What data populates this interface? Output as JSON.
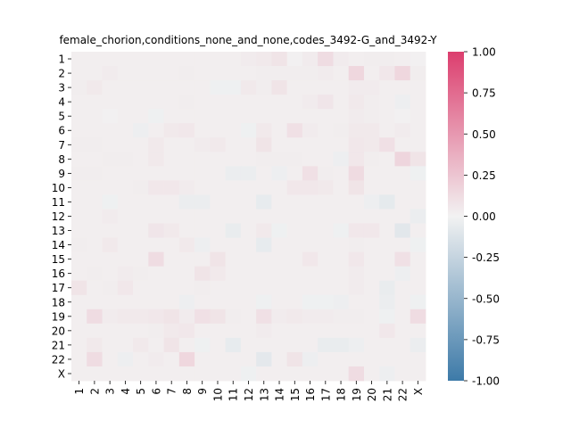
{
  "chart_data": {
    "type": "heatmap",
    "title": "female_chorion,conditions_none_and_none,codes_3492-G_and_3492-Y",
    "xlabel": "",
    "ylabel": "",
    "row_labels": [
      "1",
      "2",
      "3",
      "4",
      "5",
      "6",
      "7",
      "8",
      "9",
      "10",
      "11",
      "12",
      "13",
      "14",
      "15",
      "16",
      "17",
      "18",
      "19",
      "20",
      "21",
      "22",
      "X"
    ],
    "col_labels": [
      "1",
      "2",
      "3",
      "4",
      "5",
      "6",
      "7",
      "8",
      "9",
      "10",
      "11",
      "12",
      "13",
      "14",
      "15",
      "16",
      "17",
      "18",
      "19",
      "20",
      "21",
      "22",
      "X"
    ],
    "colorbar": {
      "min": -1.0,
      "max": 1.0,
      "ticks": [
        "-1.00",
        "-0.75",
        "-0.50",
        "-0.25",
        "0.00",
        "0.25",
        "0.50",
        "0.75",
        "1.00"
      ],
      "tick_values": [
        -1.0,
        -0.75,
        -0.5,
        -0.25,
        0.0,
        0.25,
        0.5,
        0.75,
        1.0
      ],
      "low_color": "#3d7aa8",
      "mid_color": "#f2f2f2",
      "high_color": "#dc3e6e"
    },
    "values": [
      [
        0.02,
        0.02,
        0.02,
        0.02,
        0.02,
        0.02,
        0.02,
        0.02,
        0.02,
        0.02,
        0.02,
        0.04,
        0.05,
        0.08,
        0.01,
        0.04,
        0.12,
        0.04,
        0.02,
        0.03,
        0.03,
        0.02,
        0.01
      ],
      [
        0.02,
        0.02,
        0.04,
        0.02,
        0.02,
        0.02,
        0.02,
        0.03,
        0.02,
        0.02,
        0.02,
        0.02,
        0.03,
        0.03,
        0.03,
        0.03,
        0.04,
        0.02,
        0.15,
        0.02,
        0.06,
        0.15,
        0.03
      ],
      [
        0.03,
        0.05,
        0.02,
        0.02,
        0.02,
        0.02,
        0.02,
        0.02,
        0.02,
        -0.02,
        -0.02,
        0.05,
        0.03,
        0.08,
        0.02,
        0.02,
        0.02,
        0.02,
        0.04,
        0.04,
        0.02,
        0.02,
        0.02
      ],
      [
        0.02,
        0.02,
        0.02,
        0.02,
        0.02,
        0.02,
        0.02,
        0.03,
        0.02,
        0.02,
        0.02,
        0.02,
        0.02,
        0.02,
        0.02,
        0.04,
        0.07,
        0.02,
        0.05,
        0.03,
        0.02,
        -0.03,
        0.02
      ],
      [
        0.02,
        0.02,
        0.01,
        0.02,
        0.02,
        -0.02,
        0.02,
        0.02,
        0.02,
        0.02,
        0.02,
        0.02,
        0.02,
        0.02,
        0.02,
        0.02,
        0.02,
        0.02,
        0.04,
        0.03,
        0.02,
        0.01,
        0.02
      ],
      [
        0.02,
        0.02,
        0.02,
        0.02,
        -0.03,
        0.02,
        0.05,
        0.06,
        0.02,
        0.02,
        0.02,
        -0.02,
        0.05,
        0.02,
        0.1,
        0.04,
        0.02,
        0.03,
        0.05,
        0.05,
        0.02,
        0.04,
        0.02
      ],
      [
        0.03,
        0.03,
        0.02,
        0.02,
        0.02,
        0.05,
        0.02,
        0.02,
        0.04,
        0.05,
        0.02,
        0.02,
        0.08,
        0.02,
        0.02,
        0.02,
        0.02,
        0.02,
        0.06,
        0.05,
        0.1,
        0.02,
        0.02
      ],
      [
        0.02,
        0.02,
        0.03,
        0.03,
        0.02,
        0.05,
        0.02,
        0.02,
        0.02,
        0.02,
        0.02,
        0.02,
        0.03,
        0.03,
        0.03,
        0.02,
        0.02,
        -0.03,
        0.06,
        0.03,
        0.02,
        0.16,
        0.08
      ],
      [
        0.03,
        0.03,
        0.02,
        0.02,
        0.02,
        0.02,
        0.02,
        0.02,
        0.02,
        0.02,
        -0.04,
        -0.04,
        0.02,
        -0.03,
        0.02,
        0.1,
        0.03,
        0.02,
        0.13,
        0.02,
        0.02,
        0.02,
        -0.02
      ],
      [
        0.02,
        0.02,
        0.02,
        0.02,
        0.03,
        0.06,
        0.06,
        0.04,
        0.02,
        0.02,
        0.02,
        0.02,
        0.02,
        0.02,
        0.06,
        0.06,
        0.05,
        0.02,
        0.08,
        0.02,
        0.02,
        0.02,
        0.02
      ],
      [
        0.02,
        0.02,
        -0.02,
        0.02,
        0.02,
        0.02,
        0.02,
        -0.04,
        -0.04,
        0.02,
        0.02,
        0.02,
        -0.06,
        0.02,
        0.02,
        0.02,
        0.02,
        0.02,
        0.02,
        -0.03,
        -0.07,
        0.02,
        0.02
      ],
      [
        0.02,
        0.02,
        0.04,
        0.02,
        0.02,
        0.02,
        0.02,
        0.02,
        0.02,
        0.02,
        0.02,
        0.02,
        0.02,
        0.02,
        0.02,
        0.02,
        0.02,
        0.02,
        0.02,
        0.02,
        0.02,
        0.02,
        -0.04
      ],
      [
        0.02,
        0.02,
        0.02,
        0.02,
        0.02,
        0.07,
        0.05,
        0.02,
        0.02,
        0.02,
        -0.05,
        0.02,
        0.05,
        -0.02,
        0.02,
        0.02,
        0.02,
        -0.02,
        0.06,
        0.06,
        0.02,
        -0.09,
        0.02
      ],
      [
        0.03,
        0.02,
        0.05,
        0.02,
        0.02,
        0.02,
        0.02,
        0.05,
        -0.03,
        0.02,
        0.02,
        0.02,
        -0.06,
        0.02,
        0.02,
        0.02,
        0.02,
        0.02,
        0.03,
        0.02,
        0.02,
        0.02,
        -0.02
      ],
      [
        0.02,
        0.02,
        0.02,
        0.02,
        0.02,
        0.12,
        0.02,
        0.02,
        0.02,
        0.08,
        0.02,
        0.02,
        0.02,
        0.02,
        0.02,
        0.06,
        0.02,
        0.02,
        0.06,
        0.02,
        0.02,
        0.1,
        0.02
      ],
      [
        0.02,
        0.03,
        0.02,
        0.04,
        0.03,
        0.02,
        0.02,
        0.02,
        0.08,
        0.05,
        0.02,
        0.02,
        0.02,
        0.02,
        0.02,
        0.02,
        0.02,
        0.02,
        0.04,
        0.02,
        0.02,
        -0.03,
        0.02
      ],
      [
        0.08,
        0.02,
        0.03,
        0.06,
        0.02,
        0.02,
        0.02,
        0.02,
        0.03,
        0.02,
        0.02,
        0.02,
        0.02,
        0.02,
        0.02,
        0.02,
        0.02,
        0.02,
        0.04,
        0.02,
        -0.05,
        0.02,
        0.02
      ],
      [
        0.02,
        0.02,
        0.02,
        0.02,
        0.02,
        0.02,
        0.02,
        -0.03,
        0.02,
        0.02,
        0.02,
        0.02,
        -0.02,
        0.02,
        0.02,
        -0.02,
        -0.02,
        -0.03,
        0.02,
        0.02,
        -0.04,
        0.02,
        -0.02
      ],
      [
        0.02,
        0.12,
        0.04,
        0.05,
        0.05,
        0.06,
        0.08,
        0.04,
        0.1,
        0.08,
        0.03,
        0.02,
        0.1,
        0.04,
        0.05,
        0.04,
        0.04,
        0.03,
        0.03,
        0.02,
        -0.02,
        0.02,
        0.12
      ],
      [
        0.02,
        0.02,
        0.02,
        0.02,
        0.02,
        0.03,
        0.05,
        0.06,
        0.02,
        0.02,
        0.02,
        0.02,
        0.04,
        0.02,
        0.02,
        0.02,
        0.02,
        0.02,
        0.02,
        0.02,
        0.06,
        0.02,
        0.02
      ],
      [
        0.02,
        0.05,
        0.02,
        0.02,
        0.05,
        0.02,
        0.08,
        0.02,
        -0.02,
        0.02,
        -0.06,
        0.02,
        0.02,
        0.02,
        0.02,
        0.02,
        -0.05,
        -0.05,
        -0.03,
        0.02,
        0.02,
        0.02,
        -0.04
      ],
      [
        0.02,
        0.12,
        0.02,
        -0.03,
        0.02,
        0.04,
        0.02,
        0.15,
        0.02,
        0.02,
        0.02,
        0.02,
        -0.08,
        0.02,
        0.08,
        -0.03,
        0.02,
        0.02,
        0.02,
        0.02,
        0.02,
        0.02,
        0.02
      ],
      [
        0.02,
        0.02,
        0.02,
        0.02,
        0.02,
        0.02,
        0.02,
        0.02,
        0.02,
        0.02,
        0.02,
        -0.02,
        0.02,
        0.02,
        0.02,
        0.02,
        0.02,
        0.02,
        0.12,
        0.02,
        -0.03,
        0.02,
        0.02
      ]
    ]
  }
}
